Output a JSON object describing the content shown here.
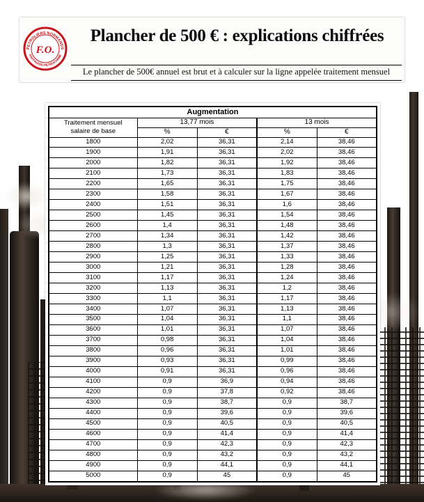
{
  "header": {
    "title": "Plancher de 500 € : explications chiffrées",
    "subtitle": "Le plancher de 500€ annuel est brut et à calculer sur la ligne appelée traitement mensuel"
  },
  "logo": {
    "center": "F.O.",
    "arc_top": "PETROLIERS NORMANDS",
    "arc_bottom": "RAFFINAGE-PETROCHIMIE"
  },
  "colors": {
    "accent_red": "#c4161c"
  },
  "table": {
    "title": "Augmentation",
    "base_col_line1": "Traitement mensuel",
    "base_col_line2": "salaire de base",
    "group_1377": "13,77 mois",
    "group_13": "13 mois",
    "pct": "%",
    "eur": "€",
    "rows": [
      [
        "1800",
        "2,02",
        "36,31",
        "2,14",
        "38,46"
      ],
      [
        "1900",
        "1,91",
        "36,31",
        "2,02",
        "38,46"
      ],
      [
        "2000",
        "1,82",
        "36,31",
        "1,92",
        "38,46"
      ],
      [
        "2100",
        "1,73",
        "36,31",
        "1,83",
        "38,46"
      ],
      [
        "2200",
        "1,65",
        "36,31",
        "1,75",
        "38,46"
      ],
      [
        "2300",
        "1,58",
        "36,31",
        "1,67",
        "38,46"
      ],
      [
        "2400",
        "1,51",
        "36,31",
        "1,6",
        "38,46"
      ],
      [
        "2500",
        "1,45",
        "36,31",
        "1,54",
        "38,46"
      ],
      [
        "2600",
        "1,4",
        "36,31",
        "1,48",
        "38,46"
      ],
      [
        "2700",
        "1,34",
        "36,31",
        "1,42",
        "38,46"
      ],
      [
        "2800",
        "1,3",
        "36,31",
        "1,37",
        "38,46"
      ],
      [
        "2900",
        "1,25",
        "36,31",
        "1,33",
        "38,46"
      ],
      [
        "3000",
        "1,21",
        "36,31",
        "1,28",
        "38,46"
      ],
      [
        "3100",
        "1,17",
        "36,31",
        "1,24",
        "38,46"
      ],
      [
        "3200",
        "1,13",
        "36,31",
        "1,2",
        "38,46"
      ],
      [
        "3300",
        "1,1",
        "36,31",
        "1,17",
        "38,46"
      ],
      [
        "3400",
        "1,07",
        "36,31",
        "1,13",
        "38,46"
      ],
      [
        "3500",
        "1,04",
        "36,31",
        "1,1",
        "38,46"
      ],
      [
        "3600",
        "1,01",
        "36,31",
        "1,07",
        "38,46"
      ],
      [
        "3700",
        "0,98",
        "36,31",
        "1,04",
        "38,46"
      ],
      [
        "3800",
        "0,96",
        "36,31",
        "1,01",
        "38,46"
      ],
      [
        "3900",
        "0,93",
        "36,31",
        "0,99",
        "38,46"
      ],
      [
        "4000",
        "0,91",
        "36,31",
        "0,96",
        "38,46"
      ],
      [
        "4100",
        "0,9",
        "36,9",
        "0,94",
        "38,46"
      ],
      [
        "4200",
        "0,9",
        "37,8",
        "0,92",
        "38,46"
      ],
      [
        "4300",
        "0,9",
        "38,7",
        "0,9",
        "38,7"
      ],
      [
        "4400",
        "0,9",
        "39,6",
        "0,9",
        "39,6"
      ],
      [
        "4500",
        "0,9",
        "40,5",
        "0,9",
        "40,5"
      ],
      [
        "4600",
        "0,9",
        "41,4",
        "0,9",
        "41,4"
      ],
      [
        "4700",
        "0,9",
        "42,3",
        "0,9",
        "42,3"
      ],
      [
        "4800",
        "0,9",
        "43,2",
        "0,9",
        "43,2"
      ],
      [
        "4900",
        "0,9",
        "44,1",
        "0,9",
        "44,1"
      ],
      [
        "5000",
        "0,9",
        "45",
        "0,9",
        "45"
      ]
    ]
  }
}
